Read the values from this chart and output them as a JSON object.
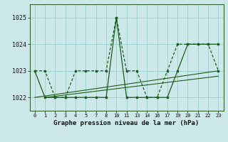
{
  "background_color": "#cce8e8",
  "grid_color": "#99cccc",
  "line_color": "#1a5c1a",
  "title": "Graphe pression niveau de la mer (hPa)",
  "ylabel_vals": [
    1022,
    1023,
    1024,
    1025
  ],
  "ylim": [
    1021.5,
    1025.5
  ],
  "hours": [
    0,
    1,
    2,
    3,
    4,
    5,
    7,
    8,
    10,
    11,
    13,
    14,
    16,
    17,
    19,
    20,
    21,
    22,
    23
  ],
  "series1_y": [
    1023.0,
    1023.0,
    1022.0,
    1022.0,
    1023.0,
    1023.0,
    1023.0,
    1023.0,
    1025.0,
    1023.0,
    1023.0,
    1022.0,
    1022.0,
    1023.0,
    1024.0,
    1024.0,
    1024.0,
    1024.0,
    1023.0
  ],
  "series2_y": [
    1023.0,
    1022.0,
    1022.0,
    1022.0,
    1022.0,
    1022.0,
    1022.0,
    1022.0,
    1025.0,
    1022.0,
    1022.0,
    1022.0,
    1022.0,
    1022.0,
    1023.0,
    1024.0,
    1024.0,
    1024.0,
    1024.0
  ],
  "trend1": {
    "x": [
      0,
      23
    ],
    "y": [
      1022.0,
      1023.0
    ]
  },
  "trend2": {
    "x": [
      1,
      23
    ],
    "y": [
      1022.0,
      1022.8
    ]
  }
}
